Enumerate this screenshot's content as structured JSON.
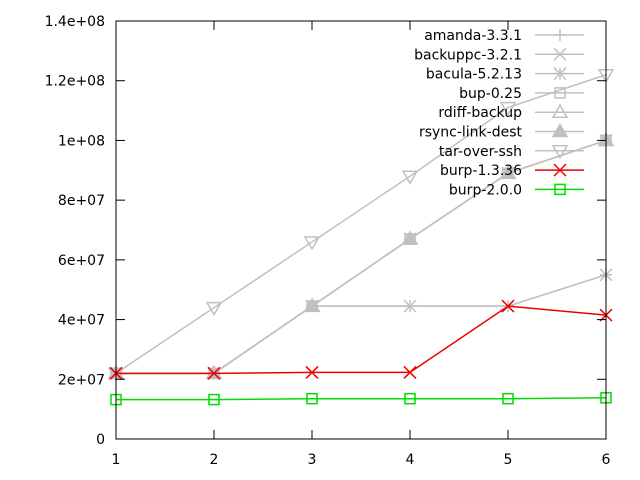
{
  "chart_data": {
    "type": "line",
    "title": "",
    "xlabel": "",
    "ylabel": "",
    "x": [
      1,
      2,
      3,
      4,
      5,
      6
    ],
    "xlim": [
      1,
      6
    ],
    "ylim": [
      0,
      140000000
    ],
    "x_ticks": [
      1,
      2,
      3,
      4,
      5,
      6
    ],
    "x_tick_labels": [
      "1",
      "2",
      "3",
      "4",
      "5",
      "6"
    ],
    "y_ticks": [
      0,
      20000000,
      40000000,
      60000000,
      80000000,
      100000000,
      120000000,
      140000000
    ],
    "y_tick_labels": [
      "0",
      "2e+07",
      "4e+07",
      "6e+07",
      "8e+07",
      "1e+08",
      "1.2e+08",
      "1.4e+08"
    ],
    "grid": false,
    "legend_position": "top-right",
    "series": [
      {
        "name": "amanda-3.3.1",
        "color": "#c0c0c0",
        "marker": "plus",
        "values": [
          22000000,
          22000000,
          44500000,
          44500000,
          44500000,
          55000000
        ]
      },
      {
        "name": "backuppc-3.2.1",
        "color": "#c0c0c0",
        "marker": "cross",
        "values": [
          22000000,
          22000000,
          44500000,
          44500000,
          44500000,
          55000000
        ]
      },
      {
        "name": "bacula-5.2.13",
        "color": "#c0c0c0",
        "marker": "star",
        "values": [
          22000000,
          22000000,
          44500000,
          67000000,
          89000000,
          100000000
        ]
      },
      {
        "name": "bup-0.25",
        "color": "#c0c0c0",
        "marker": "square-open",
        "values": [
          22000000,
          22000000,
          44500000,
          67000000,
          89000000,
          100000000
        ]
      },
      {
        "name": "rdiff-backup",
        "color": "#c0c0c0",
        "marker": "triangle-open",
        "values": [
          22000000,
          22000000,
          44500000,
          67000000,
          89000000,
          100000000
        ]
      },
      {
        "name": "rsync-link-dest",
        "color": "#c0c0c0",
        "marker": "triangle-filled",
        "values": [
          22000000,
          22000000,
          44500000,
          67000000,
          89000000,
          100000000
        ]
      },
      {
        "name": "tar-over-ssh",
        "color": "#c0c0c0",
        "marker": "triangle-down-open",
        "values": [
          22000000,
          44000000,
          66000000,
          88000000,
          111000000,
          122000000
        ]
      },
      {
        "name": "burp-1.3.36",
        "color": "#ee0000",
        "marker": "cross",
        "values": [
          22000000,
          22000000,
          22300000,
          22300000,
          44500000,
          41500000
        ]
      },
      {
        "name": "burp-2.0.0",
        "color": "#00dd00",
        "marker": "square-open",
        "values": [
          13200000,
          13200000,
          13500000,
          13500000,
          13500000,
          13800000
        ]
      }
    ]
  }
}
